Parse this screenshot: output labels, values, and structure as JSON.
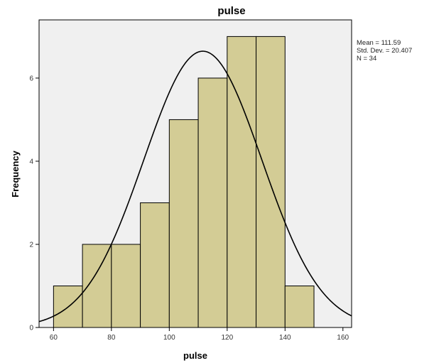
{
  "chart_data": {
    "type": "bar",
    "title": "pulse",
    "xlabel": "pulse",
    "ylabel": "Frequency",
    "bins": [
      {
        "start": 60,
        "end": 70,
        "count": 1
      },
      {
        "start": 70,
        "end": 80,
        "count": 2
      },
      {
        "start": 80,
        "end": 90,
        "count": 2
      },
      {
        "start": 90,
        "end": 100,
        "count": 3
      },
      {
        "start": 100,
        "end": 110,
        "count": 5
      },
      {
        "start": 110,
        "end": 120,
        "count": 6
      },
      {
        "start": 120,
        "end": 130,
        "count": 7
      },
      {
        "start": 130,
        "end": 140,
        "count": 7
      },
      {
        "start": 140,
        "end": 150,
        "count": 1
      }
    ],
    "xlim": [
      55,
      163
    ],
    "ylim": [
      0,
      7.4
    ],
    "xticks": [
      60,
      80,
      100,
      120,
      140,
      160
    ],
    "yticks": [
      0,
      2,
      4,
      6
    ],
    "normal_curve": {
      "mean": 111.59,
      "sd": 20.407,
      "n": 34,
      "bin_width": 10
    },
    "stats_lines": [
      "Mean = 111.59",
      "Std. Dev. = 20.407",
      "N = 34"
    ],
    "colors": {
      "plot_background": "#f0f0f0",
      "bar_fill": "#d3cc95",
      "bar_stroke": "#000000",
      "curve": "#000000"
    }
  }
}
